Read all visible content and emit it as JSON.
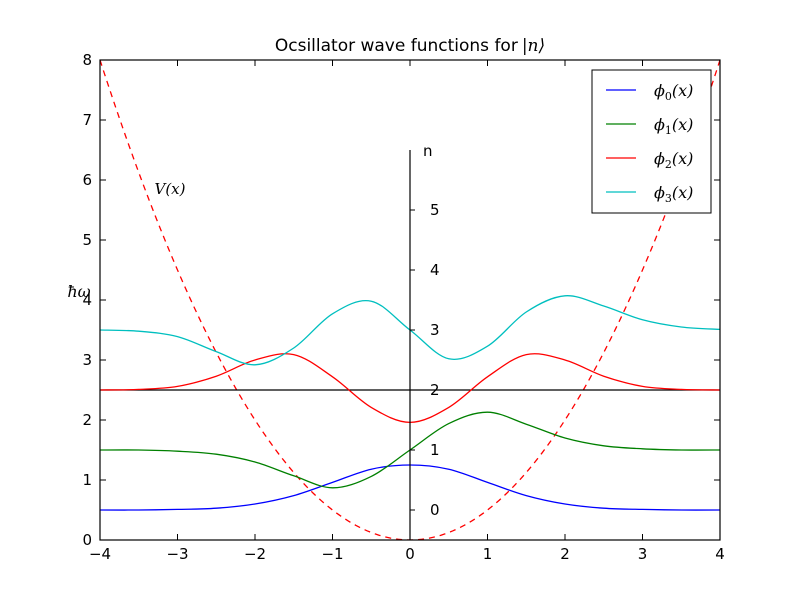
{
  "chart_data": {
    "type": "line",
    "title": "Ocsillator wave functions for",
    "title_math": "|n⟩",
    "ylabel": "ħω",
    "xlim": [
      -4,
      4
    ],
    "ylim": [
      0,
      8
    ],
    "x_ticks": [
      "−4",
      "−3",
      "−2",
      "−1",
      "0",
      "1",
      "2",
      "3",
      "4"
    ],
    "y_ticks": [
      "0",
      "1",
      "2",
      "3",
      "4",
      "5",
      "6",
      "7",
      "8"
    ],
    "inner_axis": {
      "label": "n",
      "ticks": [
        "0",
        "1",
        "2",
        "3",
        "4",
        "5"
      ],
      "tick_values": [
        0.5,
        1.5,
        2.5,
        3.5,
        4.5,
        5.5
      ],
      "top": 6.5
    },
    "potential": {
      "name": "V(x)",
      "color": "#ff0000",
      "style": "dashed",
      "formula": "x^2 / 2"
    },
    "baseline_y": 2.5,
    "legend": {
      "position": "upper right",
      "entries": [
        {
          "label": "ϕ0(x)",
          "sym": "ϕ",
          "sub": "0",
          "arg": "(x)",
          "color": "#0000ff"
        },
        {
          "label": "ϕ1(x)",
          "sym": "ϕ",
          "sub": "1",
          "arg": "(x)",
          "color": "#008000"
        },
        {
          "label": "ϕ2(x)",
          "sym": "ϕ",
          "sub": "2",
          "arg": "(x)",
          "color": "#ff0000"
        },
        {
          "label": "ϕ3(x)",
          "sym": "ϕ",
          "sub": "3",
          "arg": "(x)",
          "color": "#00bfbf"
        }
      ]
    },
    "series": [
      {
        "name": "ϕ0(x)",
        "color": "#0000ff",
        "x": [
          -4,
          -3.5,
          -3,
          -2.5,
          -2,
          -1.5,
          -1,
          -0.5,
          0,
          0.5,
          1,
          1.5,
          2,
          2.5,
          3,
          3.5,
          4
        ],
        "y": [
          0.5,
          0.5,
          0.51,
          0.53,
          0.6,
          0.74,
          0.96,
          1.18,
          1.25,
          1.18,
          0.96,
          0.74,
          0.6,
          0.53,
          0.51,
          0.5,
          0.5
        ]
      },
      {
        "name": "ϕ1(x)",
        "color": "#008000",
        "x": [
          -4,
          -3.5,
          -3,
          -2.5,
          -2,
          -1.5,
          -1,
          -0.5,
          0,
          0.5,
          1,
          1.5,
          2,
          2.5,
          3,
          3.5,
          4
        ],
        "y": [
          1.5,
          1.5,
          1.48,
          1.43,
          1.3,
          1.07,
          0.87,
          1.06,
          1.5,
          1.94,
          2.13,
          1.93,
          1.7,
          1.57,
          1.52,
          1.5,
          1.5
        ]
      },
      {
        "name": "ϕ2(x)",
        "color": "#ff0000",
        "x": [
          -4,
          -3.5,
          -3,
          -2.5,
          -2,
          -1.5,
          -1,
          -0.5,
          0,
          0.5,
          1,
          1.5,
          2,
          2.5,
          3,
          3.5,
          4
        ],
        "y": [
          2.5,
          2.51,
          2.56,
          2.73,
          3.0,
          3.09,
          2.72,
          2.21,
          1.96,
          2.21,
          2.72,
          3.09,
          3.0,
          2.73,
          2.56,
          2.51,
          2.5
        ]
      },
      {
        "name": "ϕ3(x)",
        "color": "#00bfbf",
        "x": [
          -4,
          -3.5,
          -3,
          -2.5,
          -2,
          -1.5,
          -1,
          -0.5,
          0,
          0.5,
          1,
          1.5,
          2,
          2.5,
          3,
          3.5,
          4
        ],
        "y": [
          3.5,
          3.48,
          3.39,
          3.14,
          2.92,
          3.2,
          3.77,
          3.98,
          3.5,
          3.02,
          3.23,
          3.8,
          4.07,
          3.9,
          3.67,
          3.55,
          3.51
        ]
      }
    ]
  }
}
